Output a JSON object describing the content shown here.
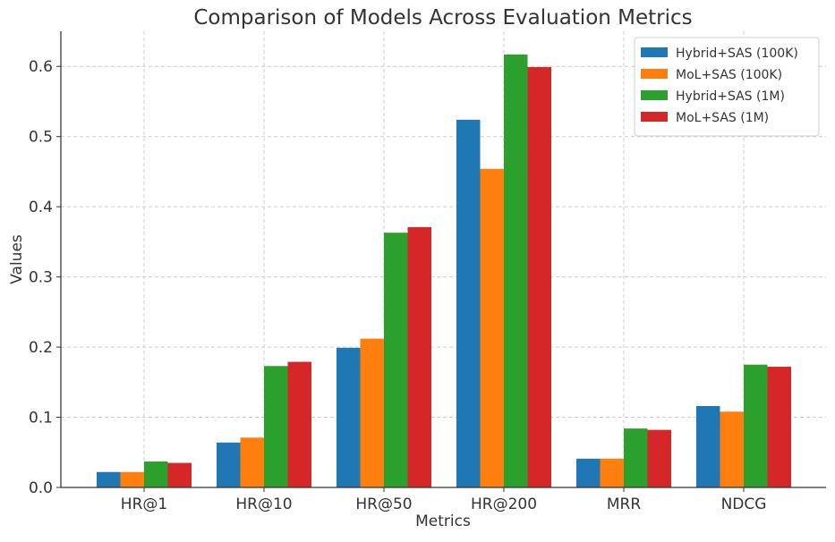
{
  "chart_data": {
    "type": "bar",
    "title": "Comparison of Models Across Evaluation Metrics",
    "xlabel": "Metrics",
    "ylabel": "Values",
    "categories": [
      "HR@1",
      "HR@10",
      "HR@50",
      "HR@200",
      "MRR",
      "NDCG"
    ],
    "ylim": [
      0,
      0.65
    ],
    "yticks": [
      0.0,
      0.1,
      0.2,
      0.3,
      0.4,
      0.5,
      0.6
    ],
    "ytick_labels": [
      "0.0",
      "0.1",
      "0.2",
      "0.3",
      "0.4",
      "0.5",
      "0.6"
    ],
    "grid": true,
    "legend_position": "top-right",
    "series": [
      {
        "name": "Hybrid+SAS (100K)",
        "color": "#1f77b4",
        "values": [
          0.022,
          0.064,
          0.199,
          0.524,
          0.041,
          0.116
        ]
      },
      {
        "name": "MoL+SAS (100K)",
        "color": "#ff7f0e",
        "values": [
          0.022,
          0.071,
          0.212,
          0.454,
          0.041,
          0.108
        ]
      },
      {
        "name": "Hybrid+SAS (1M)",
        "color": "#2ca02c",
        "values": [
          0.037,
          0.173,
          0.363,
          0.617,
          0.084,
          0.175
        ]
      },
      {
        "name": "MoL+SAS (1M)",
        "color": "#d62728",
        "values": [
          0.035,
          0.179,
          0.371,
          0.599,
          0.082,
          0.172
        ]
      }
    ]
  }
}
